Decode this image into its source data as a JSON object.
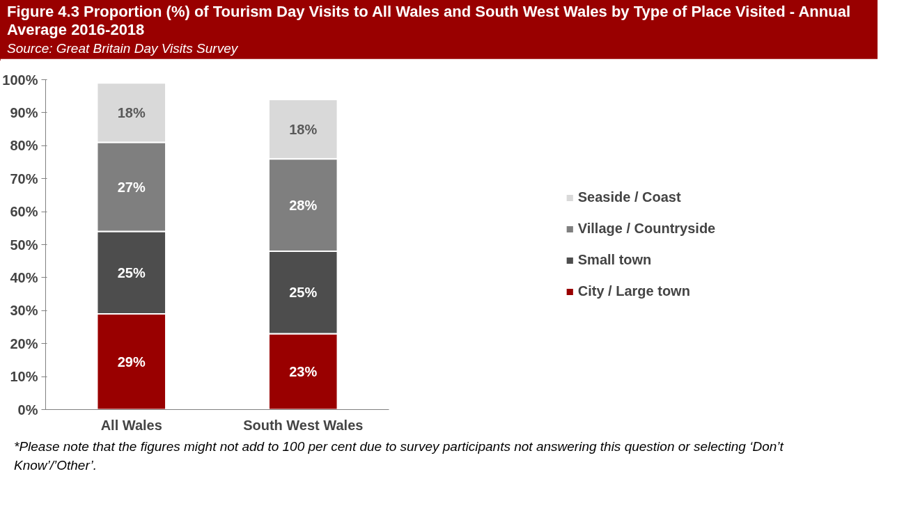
{
  "chart_data": {
    "type": "bar",
    "stacked": true,
    "title": "Figure 4.3 Proportion (%)  of Tourism Day Visits to All Wales and South West Wales by Type of Place Visited - Annual Average 2016-2018",
    "subtitle": "Source: Great Britain Day Visits Survey",
    "categories": [
      "All Wales",
      "South West Wales"
    ],
    "series": [
      {
        "name": "City / Large town",
        "color": "#990000",
        "values": [
          29,
          23
        ],
        "value_labels": [
          "29%",
          "23%"
        ]
      },
      {
        "name": "Small town",
        "color": "#4d4d4d",
        "values": [
          25,
          25
        ],
        "value_labels": [
          "25%",
          "25%"
        ]
      },
      {
        "name": "Village / Countryside",
        "color": "#7f7f7f",
        "values": [
          27,
          28
        ],
        "value_labels": [
          "27%",
          "28%"
        ]
      },
      {
        "name": "Seaside / Coast",
        "color": "#d9d9d9",
        "values": [
          18,
          18
        ],
        "value_labels": [
          "18%",
          "18%"
        ]
      }
    ],
    "ylim": [
      0,
      100
    ],
    "yticks": [
      {
        "value": 0,
        "label": "0%"
      },
      {
        "value": 10,
        "label": "10%"
      },
      {
        "value": 20,
        "label": "20%"
      },
      {
        "value": 30,
        "label": "30%"
      },
      {
        "value": 40,
        "label": "40%"
      },
      {
        "value": 50,
        "label": "50%"
      },
      {
        "value": 60,
        "label": "60%"
      },
      {
        "value": 70,
        "label": "70%"
      },
      {
        "value": 80,
        "label": "80%"
      },
      {
        "value": 90,
        "label": "90%"
      },
      {
        "value": 100,
        "label": "100%"
      }
    ],
    "grid": false,
    "legend": "right",
    "annotations": [
      "*Please note that the figures might not add to 100 per cent due to survey participants not answering this question or selecting ‘Don’t Know’/’Other’."
    ]
  }
}
